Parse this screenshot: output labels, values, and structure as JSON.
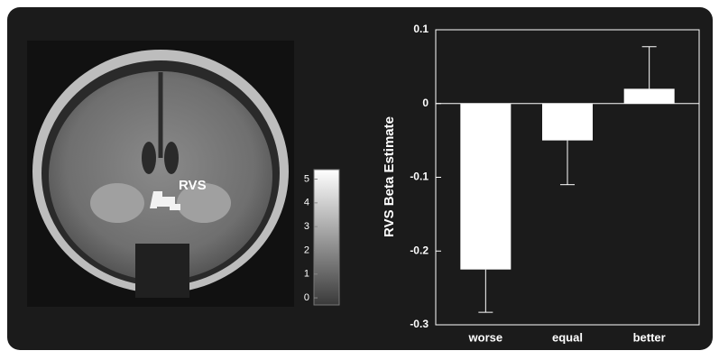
{
  "chart_data": [
    {
      "type": "bar",
      "ylabel": "RVS Beta Estimate",
      "categories": [
        "worse",
        "equal",
        "better"
      ],
      "values": [
        -0.225,
        -0.05,
        0.02
      ],
      "errors": [
        0.058,
        0.06,
        0.057
      ],
      "color": "#ffffff",
      "ylim": [
        -0.3,
        0.1
      ],
      "yticks": [
        -0.3,
        -0.2,
        -0.1,
        0,
        0.1
      ]
    },
    {
      "type": "colorbar",
      "annotation": "RVS",
      "ylim": [
        -0.3,
        5.4
      ],
      "yticks": [
        0,
        1,
        2,
        3,
        4,
        5
      ]
    }
  ]
}
